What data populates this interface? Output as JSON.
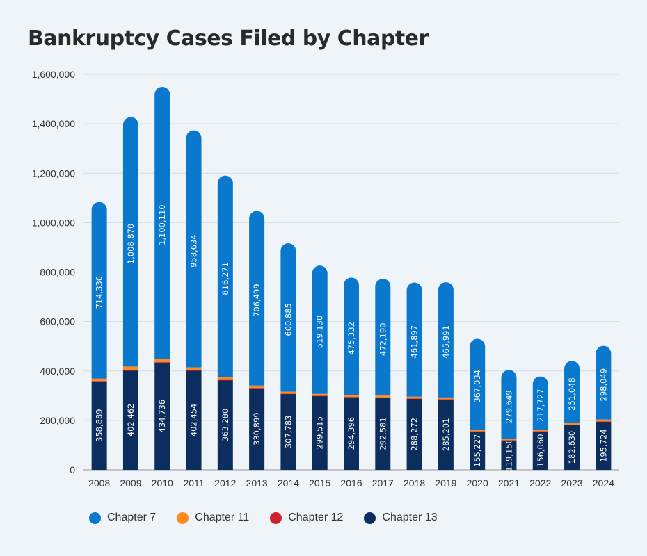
{
  "chart_data": {
    "type": "bar",
    "stacked": true,
    "title": "Bankruptcy Cases Filed by Chapter",
    "xlabel": "",
    "ylabel": "",
    "ylim": [
      0,
      1600000
    ],
    "yticks": [
      0,
      200000,
      400000,
      600000,
      800000,
      1000000,
      1200000,
      1400000,
      1600000
    ],
    "ytick_labels": [
      "0",
      "200,000",
      "400,000",
      "600,000",
      "800,000",
      "1,000,000",
      "1,200,000",
      "1,400,000",
      "1,600,000"
    ],
    "grid": true,
    "legend_position": "bottom-left",
    "categories": [
      "2008",
      "2009",
      "2010",
      "2011",
      "2012",
      "2013",
      "2014",
      "2015",
      "2016",
      "2017",
      "2018",
      "2019",
      "2020",
      "2021",
      "2022",
      "2023",
      "2024"
    ],
    "series": [
      {
        "name": "Chapter 13",
        "color": "#0c2e5e",
        "values": [
          358889,
          402462,
          434736,
          402454,
          363280,
          330899,
          307783,
          299515,
          294396,
          292581,
          288272,
          285201,
          155227,
          119150,
          156060,
          182630,
          195724
        ],
        "labels": [
          "358,889",
          "402,462",
          "434,736",
          "402,454",
          "363,280",
          "330,899",
          "307,783",
          "299,515",
          "294,396",
          "292,581",
          "288,272",
          "285,201",
          "155,227",
          "119,150",
          "156,060",
          "182,630",
          "195,724"
        ]
      },
      {
        "name": "Chapter 12",
        "color": "#d0222c",
        "values": [
          350,
          550,
          700,
          650,
          500,
          400,
          350,
          350,
          450,
          500,
          500,
          600,
          600,
          400,
          300,
          250,
          300
        ],
        "labels": []
      },
      {
        "name": "Chapter 11",
        "color": "#ff8a1f",
        "values": [
          9800,
          15000,
          13700,
          11500,
          10400,
          9700,
          7700,
          7300,
          7700,
          7400,
          7100,
          7100,
          7100,
          4800,
          3900,
          6600,
          7400
        ],
        "labels": []
      },
      {
        "name": "Chapter 7",
        "color": "#0a78cc",
        "values": [
          714330,
          1008870,
          1100110,
          958634,
          816271,
          706499,
          600885,
          519130,
          475332,
          472190,
          461897,
          465991,
          367034,
          279649,
          217727,
          251048,
          298049
        ],
        "labels": [
          "714,330",
          "1,008,870",
          "1,100,110",
          "958,634",
          "816,271",
          "706,499",
          "600,885",
          "519,130",
          "475,332",
          "472,190",
          "461,897",
          "465,991",
          "367,034",
          "279,649",
          "217,727",
          "251,048",
          "298,049"
        ]
      }
    ],
    "legend": [
      {
        "name": "Chapter 7",
        "color": "#0a78cc"
      },
      {
        "name": "Chapter 11",
        "color": "#ff8a1f"
      },
      {
        "name": "Chapter 12",
        "color": "#d0222c"
      },
      {
        "name": "Chapter 13",
        "color": "#0c2e5e"
      }
    ]
  }
}
